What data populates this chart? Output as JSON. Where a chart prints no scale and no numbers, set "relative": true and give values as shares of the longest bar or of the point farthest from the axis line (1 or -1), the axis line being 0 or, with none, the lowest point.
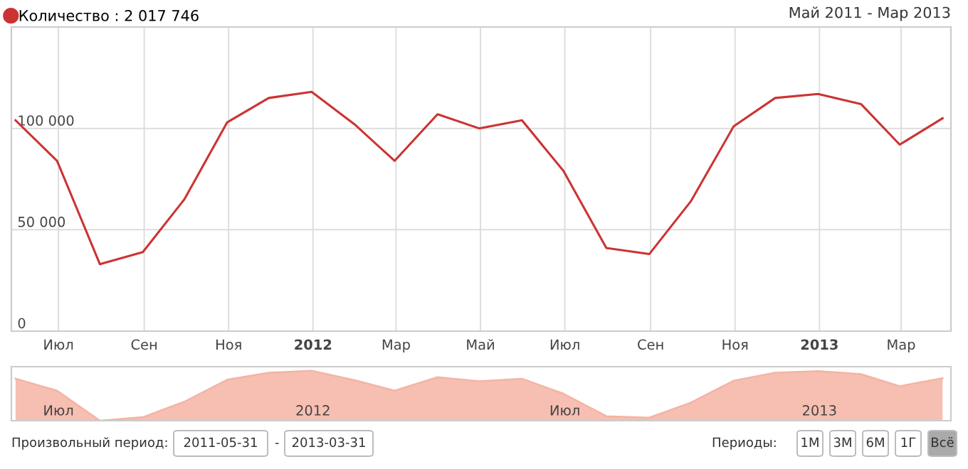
{
  "chart_data": [
    {
      "type": "line",
      "subtitle": "Май 2011 - Мар 2013",
      "x": [
        "2011-05-31",
        "2011-06-30",
        "2011-07-31",
        "2011-08-31",
        "2011-09-30",
        "2011-10-31",
        "2011-11-30",
        "2011-12-31",
        "2012-01-31",
        "2012-02-29",
        "2012-03-31",
        "2012-04-30",
        "2012-05-31",
        "2012-06-30",
        "2012-07-31",
        "2012-08-31",
        "2012-09-30",
        "2012-10-31",
        "2012-11-30",
        "2012-12-31",
        "2013-01-31",
        "2013-02-28",
        "2013-03-31"
      ],
      "series": [
        {
          "name": "Количество : 2 017 746",
          "color": "#cc3333",
          "values": [
            104000,
            84000,
            33000,
            39000,
            65000,
            103000,
            115000,
            118000,
            102000,
            84000,
            107000,
            100000,
            104000,
            79000,
            41000,
            38000,
            64000,
            101000,
            115000,
            117000,
            112000,
            92000,
            105000
          ]
        }
      ],
      "xlim": [
        "2011-05-28",
        "2013-04-06"
      ],
      "xticks": [
        {
          "value": "2011-07-01",
          "label": "Июл"
        },
        {
          "value": "2011-09-01",
          "label": "Сен"
        },
        {
          "value": "2011-11-01",
          "label": "Ноя"
        },
        {
          "value": "2012-01-01",
          "label": "2012"
        },
        {
          "value": "2012-03-01",
          "label": "Мар"
        },
        {
          "value": "2012-05-01",
          "label": "Май"
        },
        {
          "value": "2012-07-01",
          "label": "Июл"
        },
        {
          "value": "2012-09-01",
          "label": "Сен"
        },
        {
          "value": "2012-11-01",
          "label": "Ноя"
        },
        {
          "value": "2013-01-01",
          "label": "2013"
        },
        {
          "value": "2013-03-01",
          "label": "Мар"
        }
      ],
      "ylim": [
        0,
        150000
      ],
      "yticks": [
        0,
        {
          "value": 50000,
          "label": "50 000"
        },
        {
          "value": 100000,
          "label": "100 000"
        }
      ],
      "grid": true,
      "legend": "top left",
      "marker": "none",
      "line_style": "solid"
    },
    {
      "type": "area",
      "relative": true,
      "x": [
        "2011-05-31",
        "2011-06-30",
        "2011-07-31",
        "2011-08-31",
        "2011-09-30",
        "2011-10-31",
        "2011-11-30",
        "2011-12-31",
        "2012-01-31",
        "2012-02-29",
        "2012-03-31",
        "2012-04-30",
        "2012-05-31",
        "2012-06-30",
        "2012-07-31",
        "2012-08-31",
        "2012-09-30",
        "2012-10-31",
        "2012-11-30",
        "2012-12-31",
        "2013-01-31",
        "2013-02-28",
        "2013-03-31"
      ],
      "series": [
        {
          "color": "#f4b4a4",
          "values": [
            0.84,
            0.6,
            0,
            0.07,
            0.38,
            0.82,
            0.96,
            1,
            0.81,
            0.6,
            0.87,
            0.79,
            0.84,
            0.54,
            0.09,
            0.06,
            0.36,
            0.8,
            0.96,
            0.99,
            0.93,
            0.69,
            0.85
          ]
        }
      ],
      "xlim": [
        "2011-05-28",
        "2013-04-06"
      ],
      "xticks": [
        {
          "value": "2011-07-01",
          "label": "Июл"
        },
        {
          "value": "2012-01-01",
          "label": "2012"
        },
        {
          "value": "2012-07-01",
          "label": "Июл"
        },
        {
          "value": "2013-01-01",
          "label": "2013"
        }
      ],
      "tick_labels": "x",
      "annotations": [
        "Произвольный период:",
        "2011-05-31",
        "-",
        "2013-03-31",
        "Периоды:",
        "1М",
        "3М",
        "6М",
        "1Г",
        "Всё"
      ]
    }
  ]
}
